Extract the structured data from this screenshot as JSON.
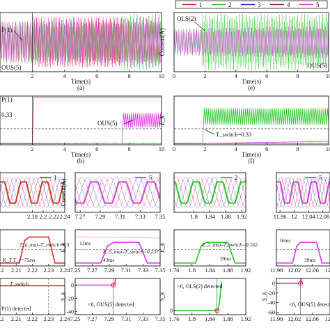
{
  "legend": {
    "entries": [
      {
        "label": "1",
        "color": "#e0282a"
      },
      {
        "label": "2",
        "color": "#28c428"
      },
      {
        "label": "3",
        "color": "#2835c8"
      },
      {
        "label": "4",
        "color": "#8a1d7e"
      },
      {
        "label": "5",
        "color": "#e033e6"
      }
    ]
  },
  "colors": {
    "c1": "#e0282a",
    "c2": "#28c428",
    "c3": "#2835c8",
    "c4": "#8a1d7e",
    "c5": "#e033e6",
    "dash": "#555555",
    "axis": "#111111"
  },
  "chart_data": [
    {
      "id": "a",
      "type": "line",
      "panel_label": "(a)",
      "xlabel": "Time(s)",
      "ylabel": "",
      "xlim": [
        0,
        10
      ],
      "xticks": [
        "2",
        "4",
        "6",
        "8",
        "10"
      ],
      "xticks_num": [
        2,
        4,
        6,
        8,
        10
      ],
      "series": [
        {
          "label": "1",
          "envelope": [
            [
              0,
              0.7
            ],
            [
              2,
              0.7
            ],
            [
              2,
              0.85
            ],
            [
              7.5,
              0.85
            ],
            [
              7.5,
              0.7
            ],
            [
              10,
              0.7
            ]
          ]
        },
        {
          "label": "2",
          "envelope": [
            [
              0,
              0.7
            ],
            [
              7.5,
              0.7
            ],
            [
              7.5,
              0.95
            ],
            [
              10,
              0.95
            ]
          ]
        },
        {
          "label": "5",
          "envelope": [
            [
              0,
              0.7
            ],
            [
              2,
              0.7
            ],
            [
              2,
              0.85
            ],
            [
              10,
              0.85
            ]
          ]
        }
      ],
      "annotations": [
        "P(1)",
        "OUS(5)"
      ]
    },
    {
      "id": "e",
      "type": "line",
      "panel_label": "(e)",
      "xlabel": "Time(s)",
      "ylabel": "Current(A)",
      "xlim": [
        0,
        10
      ],
      "xticks": [
        "0",
        "2",
        "4",
        "6",
        "8",
        "10"
      ],
      "xticks_num": [
        0,
        2,
        4,
        6,
        8,
        10
      ],
      "series": [
        {
          "label": "2",
          "envelope": [
            [
              0,
              0.45
            ],
            [
              1.8,
              0.45
            ],
            [
              1.8,
              0.95
            ],
            [
              10,
              0.95
            ]
          ]
        },
        {
          "label": "5",
          "envelope": [
            [
              0,
              0.45
            ],
            [
              10,
              0.55
            ]
          ]
        }
      ],
      "annotations": [
        "OLS(2)",
        "OUS(5)"
      ]
    },
    {
      "id": "b",
      "type": "line",
      "panel_label": "(b)",
      "xlabel": "Time(s)",
      "ylabel": "",
      "xlim": [
        0,
        10
      ],
      "xticks": [
        "2",
        "4",
        "6",
        "8",
        "10"
      ],
      "xticks_num": [
        2,
        4,
        6,
        8,
        10
      ],
      "threshold": 0.33,
      "series": [
        {
          "label": "1",
          "points": [
            [
              0,
              0.02
            ],
            [
              2,
              0.02
            ],
            [
              2.1,
              0.97
            ],
            [
              10,
              0.97
            ]
          ]
        },
        {
          "label": "5",
          "points": [
            [
              0,
              0.03
            ],
            [
              7.5,
              0.04
            ],
            [
              7.6,
              0.65
            ],
            [
              10,
              0.65
            ]
          ]
        },
        {
          "label": "2",
          "points": [
            [
              0,
              0.02
            ],
            [
              10,
              0.03
            ]
          ]
        }
      ],
      "annotations": [
        "P(1)",
        "0.33",
        "OUS(5)"
      ]
    },
    {
      "id": "f",
      "type": "line",
      "panel_label": "(f)",
      "xlabel": "Time(s)",
      "ylabel": "E_k",
      "xlim": [
        0,
        10
      ],
      "xticks": [
        "0",
        "2",
        "4",
        "6",
        "8",
        "10"
      ],
      "xticks_num": [
        0,
        2,
        4,
        6,
        8,
        10
      ],
      "threshold": 0.33,
      "series": [
        {
          "label": "2",
          "points": [
            [
              0,
              0.02
            ],
            [
              1.8,
              0.02
            ],
            [
              1.9,
              0.8
            ],
            [
              10,
              0.75
            ]
          ]
        },
        {
          "label": "5",
          "points": [
            [
              0,
              0.02
            ],
            [
              10,
              0.07
            ]
          ]
        }
      ],
      "annotations": [
        "T_switch=0.33"
      ]
    },
    {
      "id": "w1",
      "type": "line",
      "xlabel": "",
      "ylabel": "",
      "legend_label": "1",
      "xlim": [
        2.12,
        2.24
      ],
      "xticks": [
        "2.18",
        "2.2",
        "2.22",
        "2.24"
      ],
      "xticks_num": [
        2.18,
        2.2,
        2.22,
        2.24
      ]
    },
    {
      "id": "w5",
      "type": "line",
      "xlabel": "",
      "ylabel": "Current(A)",
      "legend_label": "5",
      "xlim": [
        7.265,
        7.35
      ],
      "xticks": [
        "7.27",
        "7.29",
        "7.31",
        "7.33",
        "7.35"
      ],
      "xticks_num": [
        7.27,
        7.29,
        7.31,
        7.33,
        7.35
      ]
    },
    {
      "id": "w2",
      "type": "line",
      "xlabel": "",
      "ylabel": "",
      "legend_label": "2",
      "xlim": [
        1.75,
        1.93
      ],
      "xticks": [
        "1.8",
        "1.84",
        "1.88",
        "1.92"
      ],
      "xticks_num": [
        1.8,
        1.84,
        1.88,
        1.92
      ]
    },
    {
      "id": "w6",
      "type": "line",
      "xlabel": "",
      "ylabel": "",
      "legend_label": "5",
      "xlim": [
        11.95,
        12.1
      ],
      "xticks": [
        "11.96",
        "12",
        "12.04",
        "12.08"
      ],
      "xticks_num": [
        11.96,
        12,
        12.04,
        12.08
      ]
    },
    {
      "id": "k1",
      "type": "line",
      "xlabel": "",
      "ylabel": "",
      "xlim": [
        2.2,
        2.24
      ],
      "xticks": [
        "2.2",
        "2.21",
        "2.22",
        "2.23",
        "2.24"
      ],
      "xticks_num": [
        2.2,
        2.21,
        2.22,
        2.23,
        2.24
      ],
      "annotations": [
        "T_k_max-T_switch=0.5",
        "K_T T_s=75ms"
      ]
    },
    {
      "id": "k5",
      "type": "line",
      "xlabel": "",
      "ylabel": "E_k",
      "xlim": [
        7.25,
        7.35
      ],
      "xticks": [
        "7.25",
        "7.27",
        "7.29",
        "7.31",
        "7.33",
        "7.35"
      ],
      "xticks_num": [
        7.25,
        7.27,
        7.29,
        7.31,
        7.33,
        7.35
      ],
      "annotations": [
        "13ms",
        "E_5_max-T_switch=0.237",
        "43ms"
      ]
    },
    {
      "id": "k2",
      "type": "line",
      "xlabel": "",
      "ylabel": "E_k",
      "xlim": [
        1.76,
        1.92
      ],
      "xticks": [
        "1.76",
        "1.8",
        "1.84",
        "1.88",
        "1.92"
      ],
      "xticks_num": [
        1.76,
        1.8,
        1.84,
        1.88,
        1.92
      ],
      "annotations": [
        "E_2_max-T_switch=0.162",
        "39ms"
      ]
    },
    {
      "id": "k6",
      "type": "line",
      "xlabel": "",
      "ylabel": "",
      "xlim": [
        11.98,
        12.1
      ],
      "xticks": [
        "11.98",
        "12.02",
        "12.06",
        "12.1"
      ],
      "xticks_num": [
        11.98,
        12.02,
        12.06,
        12.1
      ],
      "annotations": [
        "16ms",
        "39ms"
      ]
    },
    {
      "id": "s1",
      "type": "line",
      "xlabel": "",
      "ylabel": "",
      "xlim": [
        2.2,
        2.24
      ],
      "xticks": [
        "2.2",
        "2.21",
        "2.22",
        "2.23",
        "2.24"
      ],
      "xticks_num": [
        2.2,
        2.21,
        2.22,
        2.23,
        2.24
      ],
      "annotations": [
        "T_switch",
        "P(1) detected"
      ]
    },
    {
      "id": "s5",
      "type": "line",
      "xlabel": "",
      "ylabel": "S_k",
      "xlim": [
        7.25,
        7.35
      ],
      "xticks": [
        "7.25",
        "7.27",
        "7.29",
        "7.31",
        "7.33",
        "7.35"
      ],
      "xticks_num": [
        7.25,
        7.27,
        7.29,
        7.31,
        7.33,
        7.35
      ],
      "yticks": [
        "0",
        "-20",
        "-40"
      ],
      "yticks_num": [
        0,
        -20,
        -40
      ],
      "ylim": [
        -45,
        10
      ],
      "annotations": [
        "<0, OUS(5) detected"
      ]
    },
    {
      "id": "s2",
      "type": "line",
      "xlabel": "",
      "ylabel": "S_k",
      "xlim": [
        1.76,
        1.92
      ],
      "xticks": [
        "1.76",
        "1.8",
        "1.84",
        "1.88",
        "1.92"
      ],
      "xticks_num": [
        1.76,
        1.8,
        1.84,
        1.88,
        1.92
      ],
      "yticks": [
        "0"
      ],
      "yticks_num": [
        0
      ],
      "ylim": [
        -5,
        40
      ],
      "annotations": [
        ">0, OLS(2) detected"
      ]
    },
    {
      "id": "s6",
      "type": "line",
      "xlabel": "",
      "ylabel": "S_k",
      "xlim": [
        11.98,
        12.1
      ],
      "xticks": [
        "11.98",
        "12.02",
        "12.06",
        "12.1"
      ],
      "xticks_num": [
        11.98,
        12.02,
        12.06,
        12.1
      ],
      "yticks": [
        "0",
        "-20",
        "-40",
        "-60"
      ],
      "yticks_num": [
        0,
        -20,
        -40,
        -60
      ],
      "ylim": [
        -65,
        10
      ],
      "annotations": [
        "<0, OUS(5) detected"
      ]
    }
  ]
}
